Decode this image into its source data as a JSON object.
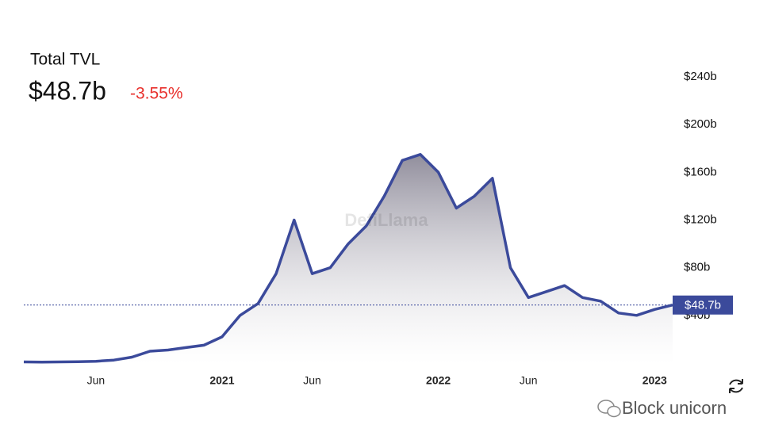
{
  "header": {
    "label": "Total TVL",
    "value": "$48.7b",
    "change": "-3.55%"
  },
  "watermark": "DefiLlama",
  "credit": "Block unicorn",
  "chart_data": {
    "type": "area",
    "x": [
      "2020-02",
      "2020-03",
      "2020-04",
      "2020-05",
      "2020-06",
      "2020-07",
      "2020-08",
      "2020-09",
      "2020-10",
      "2020-11",
      "2020-12",
      "2021-01",
      "2021-02",
      "2021-03",
      "2021-04",
      "2021-05",
      "2021-06",
      "2021-07",
      "2021-08",
      "2021-09",
      "2021-10",
      "2021-11",
      "2021-12",
      "2022-01",
      "2022-02",
      "2022-03",
      "2022-04",
      "2022-05",
      "2022-06",
      "2022-07",
      "2022-08",
      "2022-09",
      "2022-10",
      "2022-11",
      "2022-12",
      "2023-01",
      "2023-02"
    ],
    "series": [
      {
        "name": "Total TVL",
        "color": "#3b4a9b",
        "values": [
          1,
          0.8,
          1,
          1.2,
          1.5,
          2.5,
          5,
          10,
          11,
          13,
          15,
          22,
          40,
          50,
          75,
          120,
          75,
          80,
          100,
          115,
          140,
          170,
          175,
          160,
          130,
          140,
          155,
          80,
          55,
          60,
          65,
          55,
          52,
          42,
          40,
          45,
          48.7
        ]
      }
    ],
    "xlim": [
      "2020-02",
      "2023-02"
    ],
    "xticks": [
      {
        "value": "2020-06",
        "label": "Jun"
      },
      {
        "value": "2021-01",
        "label": "2021"
      },
      {
        "value": "2021-06",
        "label": "Jun"
      },
      {
        "value": "2022-01",
        "label": "2022"
      },
      {
        "value": "2022-06",
        "label": "Jun"
      },
      {
        "value": "2023-01",
        "label": "2023"
      }
    ],
    "ylim": [
      0,
      240
    ],
    "yticks": [
      {
        "value": 40,
        "label": "$40b"
      },
      {
        "value": 80,
        "label": "$80b"
      },
      {
        "value": 120,
        "label": "$120b"
      },
      {
        "value": 160,
        "label": "$160b"
      },
      {
        "value": 200,
        "label": "$200b"
      },
      {
        "value": 240,
        "label": "$240b"
      }
    ],
    "current": {
      "value": 48.7,
      "label": "$48.7b"
    }
  }
}
